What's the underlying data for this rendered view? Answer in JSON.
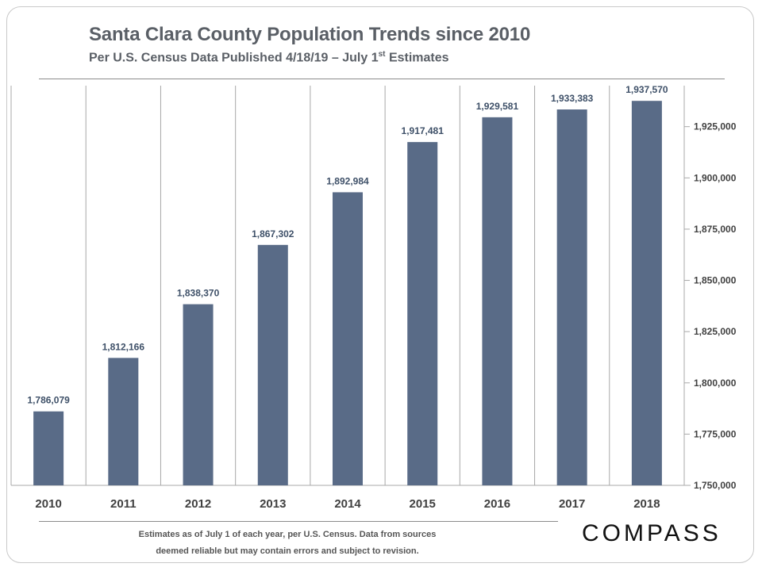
{
  "header": {
    "title": "Santa Clara County Population Trends since 2010",
    "subtitle_main": "Per U.S. Census Data Published  4/18/19 – July 1",
    "subtitle_sup": "st",
    "subtitle_tail": " Estimates"
  },
  "footer": {
    "note_line1": "Estimates as of July 1 of each year, per U.S. Census. Data from sources",
    "note_line2": "deemed reliable but may contain errors and subject to revision.",
    "logo": "COMPASS"
  },
  "colors": {
    "bar": "#596b87",
    "label": "#3e5068",
    "axis_text": "#404040",
    "grid": "#a8a8a8"
  },
  "chart_data": {
    "type": "bar",
    "categories": [
      "2010",
      "2011",
      "2012",
      "2013",
      "2014",
      "2015",
      "2016",
      "2017",
      "2018"
    ],
    "values": [
      1786079,
      1812166,
      1838370,
      1867302,
      1892984,
      1917481,
      1929581,
      1933383,
      1937570
    ],
    "value_labels": [
      "1,786,079",
      "1,812,166",
      "1,838,370",
      "1,867,302",
      "1,892,984",
      "1,917,481",
      "1,929,581",
      "1,933,383",
      "1,937,570"
    ],
    "yticks": [
      1750000,
      1775000,
      1800000,
      1825000,
      1850000,
      1875000,
      1900000,
      1925000
    ],
    "ytick_labels": [
      "1,750,000",
      "1,775,000",
      "1,800,000",
      "1,825,000",
      "1,850,000",
      "1,875,000",
      "1,900,000",
      "1,925,000"
    ],
    "ylim": [
      1750000,
      1945000
    ],
    "y_axis_side": "right",
    "vertical_gridlines": true,
    "legend": "none",
    "title": "Santa Clara County Population Trends since 2010",
    "xlabel": "",
    "ylabel": ""
  }
}
